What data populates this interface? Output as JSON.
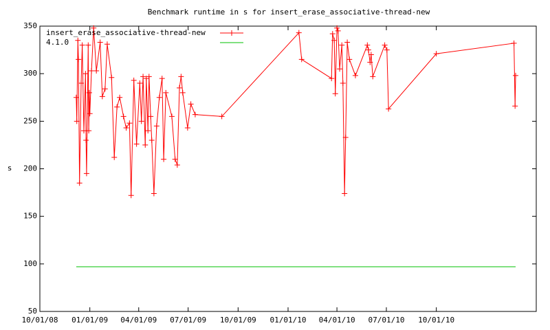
{
  "chart_data": {
    "type": "line",
    "title": "Benchmark runtime in s for insert_erase_associative-thread-new",
    "y_label": "s",
    "xlim": [
      "2008-10-01",
      "2011-04-03"
    ],
    "xticks": [
      {
        "value": "2008-10-01",
        "label": "10/01/08"
      },
      {
        "value": "2009-01-01",
        "label": "01/01/09"
      },
      {
        "value": "2009-04-01",
        "label": "04/01/09"
      },
      {
        "value": "2009-07-01",
        "label": "07/01/09"
      },
      {
        "value": "2009-10-01",
        "label": "10/01/09"
      },
      {
        "value": "2010-01-01",
        "label": "01/01/10"
      },
      {
        "value": "2010-04-01",
        "label": "04/01/10"
      },
      {
        "value": "2010-07-01",
        "label": "07/01/10"
      },
      {
        "value": "2010-10-01",
        "label": "10/01/10"
      }
    ],
    "ylim": [
      50,
      350
    ],
    "yticks": [
      50,
      100,
      150,
      200,
      250,
      300,
      350
    ],
    "legend": "top-left",
    "series": [
      {
        "name": "insert_erase_associative-thread-new",
        "color": "#ff0000",
        "marker": "plus",
        "x": [
          "2008-12-07",
          "2008-12-08",
          "2008-12-10",
          "2008-12-11",
          "2008-12-13",
          "2008-12-16",
          "2008-12-18",
          "2008-12-21",
          "2008-12-24",
          "2008-12-25",
          "2008-12-26",
          "2008-12-29",
          "2008-12-30",
          "2008-12-31",
          "2009-01-01",
          "2009-01-04",
          "2009-01-08",
          "2009-01-13",
          "2009-01-20",
          "2009-01-24",
          "2009-01-29",
          "2009-02-02",
          "2009-02-10",
          "2009-02-15",
          "2009-02-20",
          "2009-02-25",
          "2009-03-04",
          "2009-03-09",
          "2009-03-15",
          "2009-03-18",
          "2009-03-23",
          "2009-03-28",
          "2009-04-03",
          "2009-04-06",
          "2009-04-09",
          "2009-04-13",
          "2009-04-15",
          "2009-04-18",
          "2009-04-20",
          "2009-04-23",
          "2009-04-25",
          "2009-04-29",
          "2009-05-04",
          "2009-05-09",
          "2009-05-14",
          "2009-05-17",
          "2009-05-21",
          "2009-06-01",
          "2009-06-07",
          "2009-06-11",
          "2009-06-15",
          "2009-06-18",
          "2009-06-21",
          "2009-06-30",
          "2009-07-06",
          "2009-07-14",
          "2009-09-01",
          "2010-01-21",
          "2010-01-26",
          "2010-03-22",
          "2010-03-24",
          "2010-03-27",
          "2010-03-29",
          "2010-04-01",
          "2010-04-03",
          "2010-04-06",
          "2010-04-10",
          "2010-04-12",
          "2010-04-15",
          "2010-04-17",
          "2010-04-20",
          "2010-04-24",
          "2010-05-05",
          "2010-05-27",
          "2010-05-29",
          "2010-06-01",
          "2010-06-03",
          "2010-06-06",
          "2010-06-28",
          "2010-07-02",
          "2010-07-05",
          "2010-10-01",
          "2011-02-21",
          "2011-02-23",
          "2011-02-24"
        ],
        "values": [
          275,
          250,
          335,
          315,
          185,
          290,
          330,
          240,
          300,
          230,
          195,
          330,
          240,
          280,
          258,
          303,
          348,
          303,
          333,
          276,
          284,
          331,
          296,
          212,
          265,
          275,
          255,
          243,
          248,
          172,
          293,
          226,
          290,
          250,
          297,
          225,
          295,
          240,
          297,
          255,
          230,
          174,
          245,
          275,
          295,
          210,
          280,
          255,
          210,
          204,
          285,
          297,
          280,
          243,
          268,
          257,
          255,
          343,
          315,
          295,
          342,
          335,
          279,
          348,
          345,
          305,
          330,
          290,
          174,
          233,
          333,
          315,
          298,
          330,
          325,
          312,
          320,
          297,
          330,
          325,
          263,
          321,
          332,
          266,
          298
        ]
      },
      {
        "name": "4.1.0",
        "color": "#00c000",
        "x": [
          "2008-12-07",
          "2011-02-24"
        ],
        "values": [
          97,
          97
        ]
      }
    ]
  }
}
